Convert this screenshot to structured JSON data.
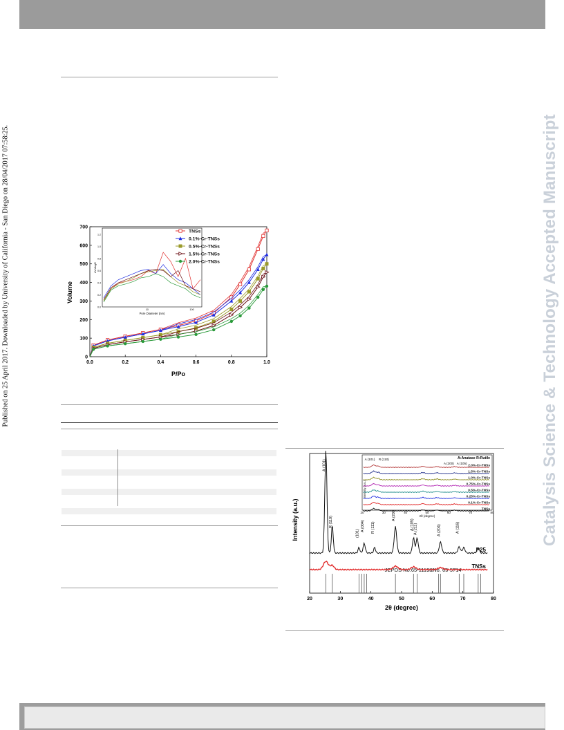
{
  "side_note": "Published on 25 April 2017. Downloaded by University of California - San Diego on 28/04/2017 07:58:25.",
  "watermark": "Catalysis Science & Technology Accepted Manuscript",
  "chart_data": [
    {
      "type": "line",
      "title": "",
      "xlabel": "P/Po",
      "ylabel": "Volume",
      "xlim": [
        0.0,
        1.0
      ],
      "ylim": [
        0,
        700
      ],
      "x_ticks": [
        "0.0",
        "0.2",
        "0.4",
        "0.6",
        "0.8",
        "1.0"
      ],
      "y_ticks": [
        "0",
        "100",
        "200",
        "300",
        "400",
        "500",
        "600",
        "700"
      ],
      "legend_position": "top-right",
      "series": [
        {
          "name": "TNSs",
          "color": "#e0302f",
          "marker": "square-open",
          "x": [
            0.0,
            0.02,
            0.1,
            0.2,
            0.3,
            0.4,
            0.5,
            0.6,
            0.7,
            0.8,
            0.85,
            0.9,
            0.95,
            0.98,
            1.0
          ],
          "y": [
            0,
            62,
            90,
            110,
            128,
            147,
            168,
            193,
            235,
            320,
            390,
            470,
            580,
            650,
            680
          ]
        },
        {
          "name": "0.1%-Cr-TNSs",
          "color": "#1f2de0",
          "marker": "triangle-filled",
          "x": [
            0.0,
            0.02,
            0.1,
            0.2,
            0.3,
            0.4,
            0.5,
            0.6,
            0.7,
            0.8,
            0.85,
            0.9,
            0.95,
            0.98,
            1.0
          ],
          "y": [
            0,
            58,
            85,
            105,
            123,
            142,
            162,
            185,
            225,
            300,
            345,
            400,
            470,
            525,
            550
          ]
        },
        {
          "name": "0.5%-Cr-TNSs",
          "color": "#9a9a2a",
          "marker": "square-filled",
          "x": [
            0.0,
            0.02,
            0.1,
            0.2,
            0.3,
            0.4,
            0.5,
            0.6,
            0.7,
            0.8,
            0.85,
            0.9,
            0.95,
            0.98,
            1.0
          ],
          "y": [
            0,
            50,
            72,
            88,
            103,
            118,
            135,
            155,
            190,
            255,
            300,
            350,
            420,
            475,
            500
          ]
        },
        {
          "name": "1.5%-Cr-TNSs",
          "color": "#6a0f14",
          "marker": "triangle-right",
          "x": [
            0.0,
            0.02,
            0.1,
            0.2,
            0.3,
            0.4,
            0.5,
            0.6,
            0.7,
            0.8,
            0.85,
            0.9,
            0.95,
            0.98,
            1.0
          ],
          "y": [
            0,
            45,
            65,
            80,
            93,
            106,
            120,
            138,
            168,
            225,
            265,
            310,
            375,
            430,
            455
          ]
        },
        {
          "name": "2.0%-Cr-TNSs",
          "color": "#2a9a3a",
          "marker": "star",
          "x": [
            0.0,
            0.02,
            0.1,
            0.2,
            0.3,
            0.4,
            0.5,
            0.6,
            0.7,
            0.8,
            0.85,
            0.9,
            0.95,
            0.98,
            1.0
          ],
          "y": [
            0,
            40,
            58,
            70,
            82,
            94,
            106,
            120,
            145,
            190,
            220,
            262,
            320,
            362,
            380
          ]
        }
      ],
      "inset": {
        "xlabel": "Pore Diameter (nm)",
        "ylabel": "dV/dlogD",
        "x_ticks": [
          "10",
          "100"
        ],
        "y_ticks": [
          "0.0",
          "0.2",
          "0.4",
          "0.6",
          "0.8",
          "1.0",
          "1.2"
        ],
        "ylim": [
          0,
          1.3
        ],
        "series": [
          {
            "name": "TNSs",
            "y": [
              0.1,
              0.3,
              0.4,
              0.42,
              0.45,
              0.5,
              0.6,
              0.55,
              0.9,
              0.75,
              0.5,
              0.8,
              0.3,
              0.45
            ]
          },
          {
            "name": "0.1%-Cr-TNSs",
            "y": [
              0.15,
              0.35,
              0.45,
              0.5,
              0.55,
              0.6,
              0.62,
              0.55,
              0.7,
              0.55,
              0.45,
              0.4,
              0.3,
              0.2
            ]
          },
          {
            "name": "0.5%-Cr-TNSs",
            "y": [
              0.1,
              0.3,
              0.38,
              0.42,
              0.48,
              0.55,
              0.58,
              0.6,
              0.62,
              0.5,
              0.4,
              0.35,
              0.25,
              0.2
            ]
          },
          {
            "name": "1.5%-Cr-TNSs",
            "y": [
              0.12,
              0.32,
              0.4,
              0.45,
              0.5,
              0.55,
              0.6,
              0.62,
              0.6,
              0.5,
              0.6,
              0.35,
              0.3,
              0.25
            ]
          },
          {
            "name": "2.0%-Cr-TNSs",
            "y": [
              0.08,
              0.28,
              0.35,
              0.38,
              0.42,
              0.48,
              0.5,
              0.55,
              0.5,
              0.4,
              0.35,
              0.3,
              0.2,
              0.15
            ]
          }
        ]
      }
    },
    {
      "type": "line",
      "title": "",
      "xlabel": "2θ (degree)",
      "ylabel": "Intensity (a.u.)",
      "xlim": [
        20,
        80
      ],
      "x_ticks": [
        "20",
        "30",
        "40",
        "50",
        "60",
        "70",
        "80"
      ],
      "series": [
        {
          "name": "P25",
          "color": "#111111"
        },
        {
          "name": "TNSs",
          "color": "#e02020"
        }
      ],
      "peak_labels": [
        {
          "label": "A (101)",
          "x": 25.3
        },
        {
          "label": "R (110)",
          "x": 27.4
        },
        {
          "label": "(101)",
          "x": 36.1
        },
        {
          "label": "A (004)",
          "x": 37.8
        },
        {
          "label": "R (111)",
          "x": 41.2
        },
        {
          "label": "A (200)",
          "x": 48.0
        },
        {
          "label": "A (105)",
          "x": 53.9
        },
        {
          "label": "A (211)",
          "x": 55.1
        },
        {
          "label": "A (204)",
          "x": 62.7
        },
        {
          "label": "A (116)",
          "x": 68.8
        }
      ],
      "reference_label": "JCPDS No.65-1119&No. 65-5714",
      "reference_lines": [
        25.3,
        27.4,
        36.1,
        37.0,
        37.8,
        38.6,
        48.0,
        53.9,
        55.1,
        62.1,
        62.7,
        68.8,
        70.3,
        75.0,
        75.8
      ],
      "inset": {
        "xlabel": "2θ (degree)",
        "ylabel": "Intensity (a.u.)",
        "xlim": [
          20,
          80
        ],
        "x_ticks": [
          "20",
          "30",
          "40",
          "50",
          "60",
          "70",
          "80"
        ],
        "legend_note": "A:Anatase  R:Rutile",
        "peak_labels": [
          "A (101)",
          "R (110)",
          "A (200)",
          "A (105)"
        ],
        "series": [
          {
            "name": "2.0%-Cr-TNSs",
            "color": "#b03030"
          },
          {
            "name": "1.5%-Cr-TNSs",
            "color": "#1f2d8a"
          },
          {
            "name": "1.0%-Cr-TNSs",
            "color": "#8a8a1a"
          },
          {
            "name": "0.75%-Cr-TNSs",
            "color": "#b020b0"
          },
          {
            "name": "0.5%-Cr-TNSs",
            "color": "#1a8a8a"
          },
          {
            "name": "0.25%-Cr-TNSs",
            "color": "#1f2de0"
          },
          {
            "name": "0.1%-Cr-TNSs",
            "color": "#e02020"
          },
          {
            "name": "TNSs",
            "color": "#111111"
          }
        ]
      }
    }
  ]
}
